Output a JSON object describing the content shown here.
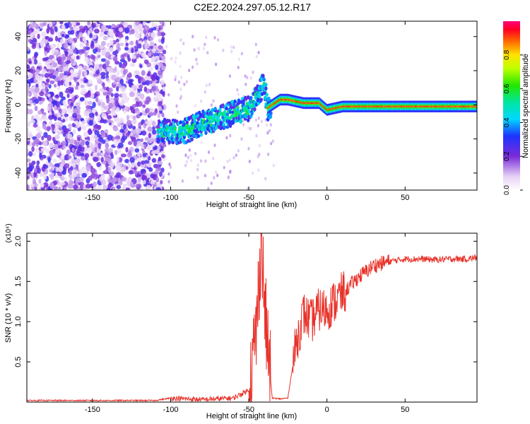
{
  "title": "C2E2.2024.297.05.12.R17",
  "chart_data": [
    {
      "type": "heatmap",
      "xlabel": "Height of straight line (km)",
      "ylabel": "Frequency (Hz)",
      "xlim": [
        -192,
        96
      ],
      "ylim": [
        -50,
        49
      ],
      "x_ticks": [
        -150,
        -100,
        -50,
        0,
        50
      ],
      "y_ticks": [
        -40,
        -20,
        0,
        20,
        40
      ],
      "colorbar": {
        "label": "Normalized spectral amplitude",
        "range": [
          0,
          1
        ],
        "ticks": [
          "0.0",
          "0.2",
          "0.4",
          "0.6",
          "0.8"
        ]
      },
      "ridge": [
        {
          "x": -108,
          "y": -15
        },
        {
          "x": -100,
          "y": -16
        },
        {
          "x": -90,
          "y": -15
        },
        {
          "x": -80,
          "y": -11
        },
        {
          "x": -70,
          "y": -8
        },
        {
          "x": -60,
          "y": -5
        },
        {
          "x": -50,
          "y": -2
        },
        {
          "x": -45,
          "y": 4
        },
        {
          "x": -40,
          "y": 13
        },
        {
          "x": -38,
          "y": -2
        },
        {
          "x": -35,
          "y": 0
        },
        {
          "x": -30,
          "y": 3
        },
        {
          "x": -25,
          "y": 3
        },
        {
          "x": -15,
          "y": 1
        },
        {
          "x": -5,
          "y": 1
        },
        {
          "x": 0,
          "y": -3
        },
        {
          "x": 10,
          "y": -1
        },
        {
          "x": 50,
          "y": -1
        },
        {
          "x": 95,
          "y": -1
        }
      ]
    },
    {
      "type": "line",
      "xlabel": "Height of straight line (km)",
      "ylabel": "SNR (10 * v/v)",
      "yscale_label": "(x10⁴)",
      "xlim": [
        -192,
        96
      ],
      "ylim": [
        0,
        2.1
      ],
      "x_ticks": [
        -150,
        -100,
        -50,
        0,
        50
      ],
      "y_ticks": [
        "0.5",
        "1.0",
        "1.5",
        "2.0"
      ],
      "series": [
        {
          "color": "#e8322a",
          "x": [
            -192,
            -110,
            -100,
            -80,
            -60,
            -50,
            -45,
            -42,
            -40,
            -38,
            -35,
            -30,
            -25,
            -20,
            -15,
            -10,
            -5,
            0,
            5,
            10,
            20,
            30,
            40,
            50,
            60,
            70,
            80,
            90,
            96
          ],
          "y": [
            0.02,
            0.02,
            0.05,
            0.03,
            0.05,
            0.15,
            0.9,
            2.1,
            1.2,
            0.7,
            0.05,
            0.04,
            0.05,
            0.7,
            1.1,
            1.0,
            1.15,
            1.15,
            1.25,
            1.35,
            1.55,
            1.7,
            1.75,
            1.78,
            1.78,
            1.77,
            1.78,
            1.78,
            1.8
          ]
        }
      ]
    }
  ]
}
